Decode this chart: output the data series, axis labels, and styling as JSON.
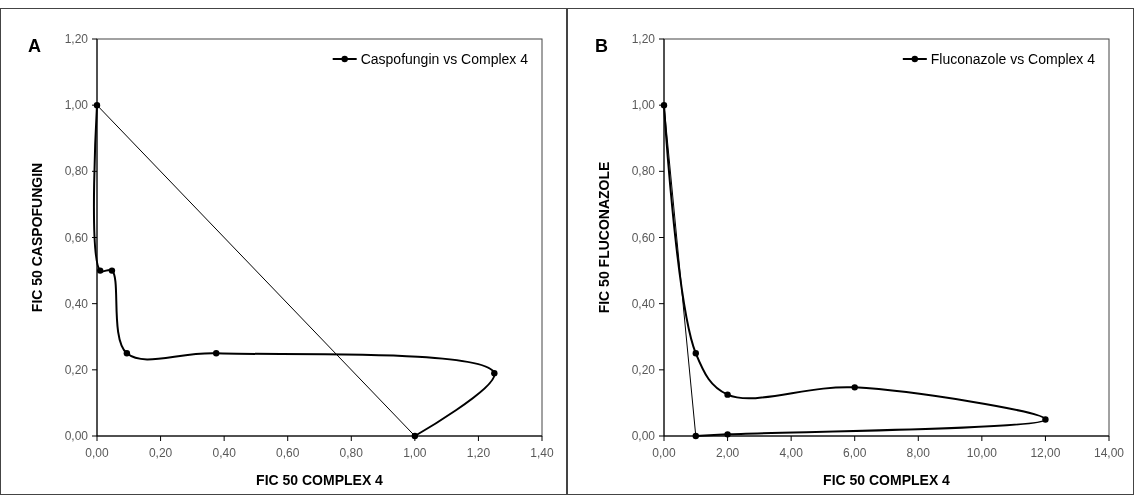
{
  "chart_data": [
    {
      "type": "line",
      "title": "A",
      "xlabel": "FIC 50 COMPLEX 4",
      "ylabel": "FIC 50 CASPOFUNGIN",
      "xlim": [
        0,
        1.4
      ],
      "xticks": [
        {
          "value": 0,
          "label": "0,00"
        },
        {
          "value": 0.2,
          "label": "0,20"
        },
        {
          "value": 0.4,
          "label": "0,40"
        },
        {
          "value": 0.6,
          "label": "0,60"
        },
        {
          "value": 0.8,
          "label": "0,80"
        },
        {
          "value": 1,
          "label": "1,00"
        },
        {
          "value": 1.2,
          "label": "1,20"
        },
        {
          "value": 1.4,
          "label": "1,40"
        }
      ],
      "ylim": [
        0,
        1.2
      ],
      "yticks": [
        {
          "value": 0,
          "label": "0,00"
        },
        {
          "value": 0.2,
          "label": "0,20"
        },
        {
          "value": 0.4,
          "label": "0,40"
        },
        {
          "value": 0.6,
          "label": "0,60"
        },
        {
          "value": 0.8,
          "label": "0,80"
        },
        {
          "value": 1,
          "label": "1,00"
        },
        {
          "value": 1.2,
          "label": "1,20"
        }
      ],
      "grid": false,
      "legend": "top right",
      "series": [
        {
          "name": "Caspofungin vs Complex 4",
          "color": "#000000",
          "marker": "circle",
          "x": [
            0,
            0.01,
            0.047,
            0.094,
            0.375,
            1.25,
            1.0
          ],
          "values": [
            1.0,
            0.5,
            0.5,
            0.25,
            0.25,
            0.19,
            0.0
          ]
        },
        {
          "color": "#000000",
          "marker": "none",
          "x": [
            0,
            1.0
          ],
          "values": [
            1.0,
            0.0
          ]
        }
      ]
    },
    {
      "type": "line",
      "title": "B",
      "xlabel": "FIC 50 COMPLEX 4",
      "ylabel": "FIC 50 FLUCONAZOLE",
      "xlim": [
        0,
        14
      ],
      "xticks": [
        {
          "value": 0,
          "label": "0,00"
        },
        {
          "value": 2,
          "label": "2,00"
        },
        {
          "value": 4,
          "label": "4,00"
        },
        {
          "value": 6,
          "label": "6,00"
        },
        {
          "value": 8,
          "label": "8,00"
        },
        {
          "value": 10,
          "label": "10,00"
        },
        {
          "value": 12,
          "label": "12,00"
        },
        {
          "value": 14,
          "label": "14,00"
        }
      ],
      "ylim": [
        0,
        1.2
      ],
      "yticks": [
        {
          "value": 0,
          "label": "0,00"
        },
        {
          "value": 0.2,
          "label": "0,20"
        },
        {
          "value": 0.4,
          "label": "0,40"
        },
        {
          "value": 0.6,
          "label": "0,60"
        },
        {
          "value": 0.8,
          "label": "0,80"
        },
        {
          "value": 1,
          "label": "1,00"
        },
        {
          "value": 1.2,
          "label": "1,20"
        }
      ],
      "grid": false,
      "legend": "top right",
      "series": [
        {
          "name": "Fluconazole vs Complex 4",
          "color": "#000000",
          "marker": "circle",
          "x": [
            0,
            1,
            2,
            6,
            12,
            2,
            1
          ],
          "values": [
            1.0,
            0.25,
            0.125,
            0.147,
            0.05,
            0.005,
            0.0
          ]
        },
        {
          "color": "#000000",
          "marker": "none",
          "x": [
            0,
            1
          ],
          "values": [
            1.0,
            0.0
          ]
        }
      ]
    }
  ]
}
